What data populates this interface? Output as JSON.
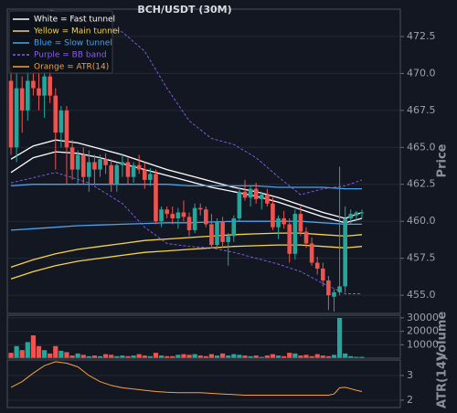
{
  "chart_data": [
    {
      "type": "candlestick",
      "title": "BCH/USDT (30M)",
      "ylabel": "Price",
      "up_color": "#26a69a",
      "down_color": "#ef5350",
      "xlim": [
        -0.66,
        69.9
      ],
      "ylim": [
        453.77,
        474.35
      ],
      "grid": true,
      "yticks": [
        {
          "value": 455,
          "label": "455.0"
        },
        {
          "value": 457.5,
          "label": "457.5"
        },
        {
          "value": 460,
          "label": "460.0"
        },
        {
          "value": 462.5,
          "label": "462.5"
        },
        {
          "value": 465,
          "label": "465.0"
        },
        {
          "value": 467.5,
          "label": "467.5"
        },
        {
          "value": 470,
          "label": "470.0"
        },
        {
          "value": 472.5,
          "label": "472.5"
        }
      ],
      "open": [
        469.5,
        465,
        469,
        467.5,
        469.5,
        469,
        468.5,
        469.8,
        468.5,
        466,
        467.5,
        465,
        463.5,
        464.5,
        463,
        464,
        463.5,
        464.2,
        463.8,
        462.5,
        463.8,
        464,
        463,
        463.8,
        463.5,
        462.8,
        463.2,
        460,
        460.8,
        460.5,
        460.2,
        460.6,
        460.3,
        459.4,
        460.9,
        460.8,
        459.8,
        458.4,
        460,
        458.6,
        459,
        460.2,
        462,
        461.6,
        462.2,
        461.5,
        461.8,
        461.2,
        459.6,
        460.2,
        459.8,
        457.8,
        460.5,
        459.3,
        458.5,
        457.2,
        456.8,
        456,
        454.9,
        455.2,
        455.6,
        460.2,
        460.4,
        460.6
      ],
      "high": [
        470.5,
        470,
        469.8,
        470.2,
        470,
        470.5,
        470,
        470.3,
        469,
        467.8,
        467.8,
        465.5,
        464.8,
        465,
        464.8,
        464.5,
        464.5,
        464.6,
        464.2,
        464,
        464.5,
        464.3,
        464,
        464.5,
        464,
        463.6,
        463.5,
        461,
        461,
        461,
        460.9,
        461.4,
        460.6,
        461.2,
        461.2,
        461,
        460.5,
        460.2,
        460.3,
        459.2,
        460.4,
        462.3,
        462.8,
        462.4,
        462.6,
        462,
        462.2,
        461.6,
        460.4,
        460.7,
        460.2,
        460.8,
        461,
        459.6,
        458.9,
        457.6,
        457.2,
        456.3,
        455.4,
        463.7,
        461,
        460.8,
        460.7,
        460.8
      ],
      "low": [
        464.5,
        464,
        466,
        466.8,
        468.5,
        467.5,
        467,
        468,
        463.5,
        465,
        462.5,
        462.8,
        462.5,
        462.5,
        462,
        462.5,
        463,
        463.2,
        462,
        462,
        463,
        462.5,
        462.6,
        463.2,
        462.2,
        462.4,
        459.8,
        459.6,
        460.2,
        459.8,
        459.5,
        460,
        459,
        459.2,
        460.4,
        459.6,
        458.2,
        458.2,
        458.2,
        457,
        458.6,
        460,
        461.4,
        461,
        461.2,
        460.8,
        461,
        459.4,
        458.8,
        459.5,
        457.2,
        457.4,
        459,
        458.2,
        457,
        456.4,
        455.6,
        454,
        453.9,
        455,
        455.2,
        459.8,
        460,
        460.2
      ],
      "close": [
        465,
        469,
        467.5,
        469.5,
        469,
        468.5,
        469.8,
        468.5,
        466,
        467.5,
        465,
        463.5,
        464.5,
        463,
        464,
        463.5,
        464.2,
        463.8,
        462.5,
        463.8,
        464,
        463,
        463.8,
        463.5,
        462.8,
        463.2,
        460,
        460.8,
        460.5,
        460.2,
        460.6,
        460.3,
        459.4,
        460.9,
        460.8,
        459.8,
        458.4,
        460,
        458.6,
        459,
        460.2,
        462,
        461.6,
        462.2,
        461.5,
        461.8,
        461.2,
        459.6,
        460.2,
        459.8,
        457.8,
        460.5,
        459.3,
        458.5,
        457.2,
        456.8,
        456,
        455,
        455.2,
        455.6,
        460.2,
        460.5,
        460.6,
        460.6
      ],
      "series": [
        {
          "name": "White = Fast tunnel",
          "color": "#ffffff",
          "dashed": false,
          "x": [
            0,
            4,
            8,
            12,
            16,
            20,
            24,
            28,
            32,
            36,
            40,
            44,
            48,
            52,
            56,
            60,
            63
          ],
          "upper": [
            464.2,
            465.1,
            465.5,
            465.3,
            464.9,
            464.5,
            464.0,
            463.5,
            463.1,
            462.7,
            462.3,
            462.0,
            461.6,
            461.1,
            460.6,
            460.2,
            460.6
          ],
          "lower": [
            463.3,
            464.3,
            464.7,
            464.6,
            464.3,
            463.9,
            463.5,
            463.1,
            462.7,
            462.3,
            462.0,
            461.7,
            461.3,
            460.8,
            460.3,
            459.9,
            460.2
          ]
        },
        {
          "name": "Yellow = Main tunnel",
          "color": "#f5d547",
          "dashed": false,
          "x": [
            0,
            4,
            8,
            12,
            16,
            20,
            24,
            28,
            32,
            36,
            40,
            44,
            48,
            52,
            56,
            60,
            63
          ],
          "upper": [
            456.9,
            457.4,
            457.8,
            458.1,
            458.3,
            458.5,
            458.7,
            458.8,
            458.9,
            459.0,
            459.1,
            459.15,
            459.2,
            459.2,
            459.1,
            459.0,
            459.1
          ],
          "lower": [
            456.1,
            456.6,
            457.0,
            457.3,
            457.5,
            457.7,
            457.9,
            458.0,
            458.1,
            458.2,
            458.3,
            458.35,
            458.4,
            458.4,
            458.3,
            458.2,
            458.3
          ]
        },
        {
          "name": "Blue = Slow tunnel",
          "color": "#4aa3f0",
          "dashed": false,
          "x": [
            0,
            4,
            8,
            12,
            16,
            20,
            24,
            28,
            32,
            36,
            40,
            44,
            48,
            52,
            56,
            60,
            63
          ],
          "upper": [
            462.4,
            462.5,
            462.5,
            462.5,
            462.5,
            462.5,
            462.5,
            462.5,
            462.4,
            462.4,
            462.4,
            462.4,
            462.3,
            462.3,
            462.3,
            462.2,
            462.2
          ],
          "lower": [
            459.4,
            459.5,
            459.6,
            459.7,
            459.75,
            459.8,
            459.85,
            459.9,
            459.9,
            459.95,
            460,
            460,
            460,
            460,
            459.9,
            459.8,
            459.8
          ]
        },
        {
          "name": "Purple = BB band",
          "color": "#8c5cf0",
          "dashed": true,
          "x": [
            0,
            8,
            14,
            20,
            24,
            28,
            32,
            36,
            40,
            44,
            48,
            52,
            56,
            60,
            63
          ],
          "upper": [
            475,
            474.2,
            473.5,
            472.8,
            471.5,
            469.0,
            466.8,
            465.6,
            465.2,
            464.3,
            463.0,
            461.8,
            462.2,
            462.4,
            462.8
          ],
          "lower": [
            462.6,
            463.3,
            462.6,
            461.2,
            459.6,
            458.5,
            458.3,
            458.2,
            457.9,
            457.5,
            457.1,
            456.6,
            455.8,
            455.1,
            455.1
          ]
        }
      ]
    },
    {
      "type": "bar",
      "ylabel": "Volume",
      "ylim": [
        0,
        32000
      ],
      "yticks": [
        10000,
        20000,
        30000
      ],
      "grid": true,
      "values": [
        4000,
        9000,
        6000,
        12000,
        17000,
        9000,
        6000,
        3500,
        9000,
        5500,
        4500,
        2000,
        3500,
        2500,
        1500,
        2000,
        1500,
        3000,
        2500,
        1500,
        2000,
        1500,
        2000,
        3000,
        2000,
        1500,
        4000,
        2000,
        1500,
        1500,
        2500,
        3000,
        2500,
        3000,
        2000,
        1500,
        3000,
        2000,
        3500,
        2000,
        3000,
        2500,
        2000,
        1500,
        2000,
        1000,
        2000,
        3000,
        2000,
        1500,
        4000,
        3500,
        2000,
        2500,
        1500,
        3000,
        2000,
        1500,
        2500,
        30000,
        3500,
        1500,
        1000,
        1000
      ]
    },
    {
      "type": "line",
      "ylabel": "ATR(14)",
      "ylim": [
        1.7,
        3.63
      ],
      "yticks": [
        2,
        3
      ],
      "grid": true,
      "series": [
        {
          "name": "Orange = ATR(14)",
          "color": "#f5a13a",
          "x": [
            0,
            2,
            4,
            6,
            8,
            10,
            12,
            14,
            16,
            18,
            20,
            22,
            24,
            26,
            28,
            30,
            34,
            38,
            42,
            46,
            50,
            54,
            56,
            57,
            58,
            59,
            60,
            62,
            63
          ],
          "values": [
            2.52,
            2.75,
            3.1,
            3.4,
            3.56,
            3.5,
            3.35,
            3.0,
            2.75,
            2.6,
            2.5,
            2.45,
            2.4,
            2.35,
            2.32,
            2.3,
            2.3,
            2.25,
            2.2,
            2.2,
            2.2,
            2.2,
            2.2,
            2.2,
            2.25,
            2.5,
            2.52,
            2.4,
            2.35
          ]
        }
      ]
    }
  ]
}
